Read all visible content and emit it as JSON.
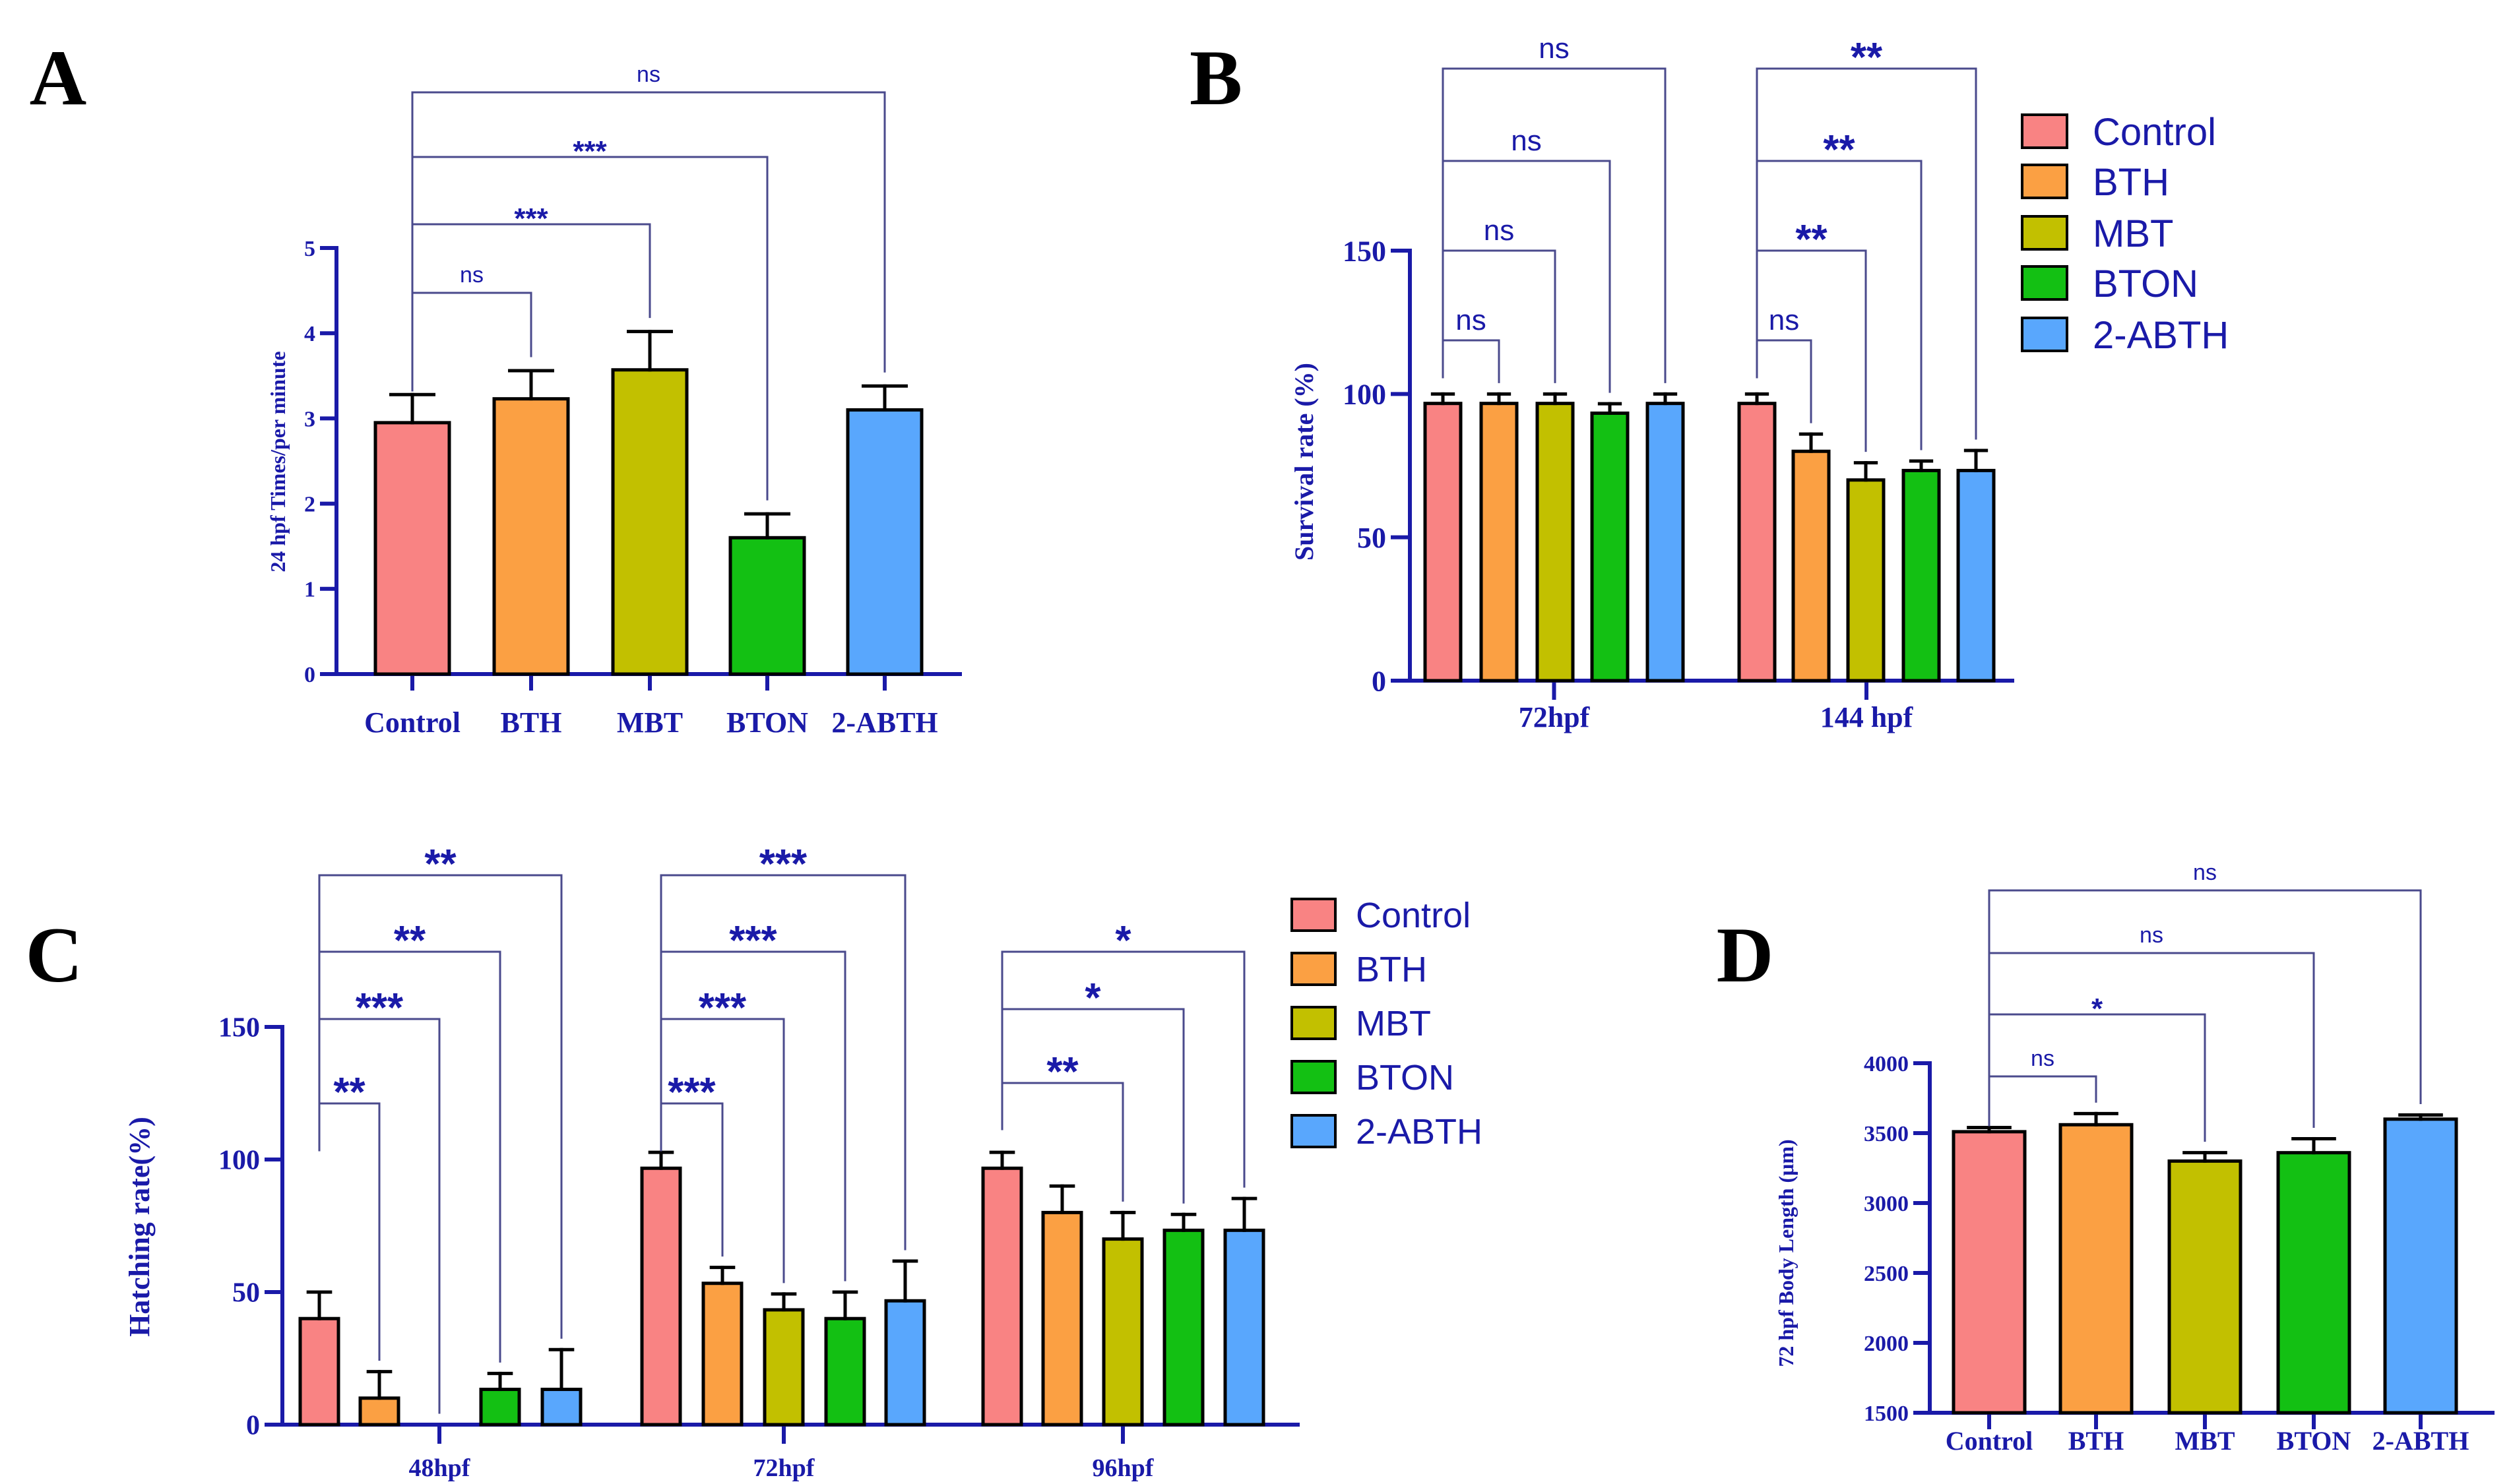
{
  "colors": {
    "axis": "#1a1aa8",
    "bracket": "#4a4a8c",
    "series": {
      "Control": "#f98383",
      "BTH": "#fba043",
      "MBT": "#c2c000",
      "BTON": "#13c013",
      "2-ABTH": "#59a7fd"
    }
  },
  "legend_labels": [
    "Control",
    "BTH",
    "MBT",
    "BTON",
    "2-ABTH"
  ],
  "chart_data": [
    {
      "panel": "A",
      "type": "bar",
      "ylabel": "24 hpf Times/per minute",
      "ylim": [
        0,
        5
      ],
      "yticks": [
        0,
        1,
        2,
        3,
        4,
        5
      ],
      "categories": [
        "Control",
        "BTH",
        "MBT",
        "BTON",
        "2-ABTH"
      ],
      "values": [
        2.95,
        3.23,
        3.57,
        1.6,
        3.1
      ],
      "errors": [
        0.33,
        0.33,
        0.45,
        0.28,
        0.28
      ],
      "significance": [
        {
          "from": "Control",
          "to": "BTH",
          "label": "ns"
        },
        {
          "from": "Control",
          "to": "MBT",
          "label": "***"
        },
        {
          "from": "Control",
          "to": "BTON",
          "label": "***"
        },
        {
          "from": "Control",
          "to": "2-ABTH",
          "label": "ns"
        }
      ]
    },
    {
      "panel": "B",
      "type": "bar",
      "ylabel": "Survival rate (%)",
      "ylim": [
        0,
        150
      ],
      "yticks": [
        0,
        50,
        100,
        150
      ],
      "groups": [
        "72hpf",
        "144 hpf"
      ],
      "series": [
        {
          "name": "Control",
          "values": [
            96.7,
            96.7
          ],
          "errors": [
            3.3,
            3.3
          ]
        },
        {
          "name": "BTH",
          "values": [
            96.7,
            80
          ],
          "errors": [
            3.3,
            6
          ]
        },
        {
          "name": "MBT",
          "values": [
            96.7,
            70
          ],
          "errors": [
            3.3,
            6
          ]
        },
        {
          "name": "BTON",
          "values": [
            93.3,
            73.3
          ],
          "errors": [
            3.3,
            3.3
          ]
        },
        {
          "name": "2-ABTH",
          "values": [
            96.7,
            73.3
          ],
          "errors": [
            3.3,
            7
          ]
        }
      ],
      "significance": [
        {
          "group": "72hpf",
          "to": "BTH",
          "label": "ns"
        },
        {
          "group": "72hpf",
          "to": "MBT",
          "label": "ns"
        },
        {
          "group": "72hpf",
          "to": "BTON",
          "label": "ns"
        },
        {
          "group": "72hpf",
          "to": "2-ABTH",
          "label": "ns"
        },
        {
          "group": "144 hpf",
          "to": "BTH",
          "label": "ns"
        },
        {
          "group": "144 hpf",
          "to": "MBT",
          "label": "**"
        },
        {
          "group": "144 hpf",
          "to": "BTON",
          "label": "**"
        },
        {
          "group": "144 hpf",
          "to": "2-ABTH",
          "label": "**"
        }
      ]
    },
    {
      "panel": "C",
      "type": "bar",
      "ylabel": "Hatching rate(%)",
      "ylim": [
        0,
        150
      ],
      "yticks": [
        0,
        50,
        100,
        150
      ],
      "groups": [
        "48hpf",
        "72hpf",
        "96hpf"
      ],
      "series": [
        {
          "name": "Control",
          "values": [
            40,
            96.7,
            96.7
          ],
          "errors": [
            10,
            6,
            6
          ]
        },
        {
          "name": "BTH",
          "values": [
            10,
            53.3,
            80
          ],
          "errors": [
            10,
            6,
            10
          ]
        },
        {
          "name": "MBT",
          "values": [
            0,
            43.3,
            70
          ],
          "errors": [
            0,
            6,
            10
          ]
        },
        {
          "name": "BTON",
          "values": [
            13.3,
            40,
            73.3
          ],
          "errors": [
            6,
            10,
            6
          ]
        },
        {
          "name": "2-ABTH",
          "values": [
            13.3,
            46.7,
            73.3
          ],
          "errors": [
            15,
            15,
            12
          ]
        }
      ],
      "significance": [
        {
          "group": "48hpf",
          "to": "BTH",
          "label": "**"
        },
        {
          "group": "48hpf",
          "to": "MBT",
          "label": "***"
        },
        {
          "group": "48hpf",
          "to": "BTON",
          "label": "**"
        },
        {
          "group": "48hpf",
          "to": "2-ABTH",
          "label": "**"
        },
        {
          "group": "72hpf",
          "to": "BTH",
          "label": "***"
        },
        {
          "group": "72hpf",
          "to": "MBT",
          "label": "***"
        },
        {
          "group": "72hpf",
          "to": "BTON",
          "label": "***"
        },
        {
          "group": "72hpf",
          "to": "2-ABTH",
          "label": "***"
        },
        {
          "group": "96hpf",
          "to": "MBT",
          "label": "**"
        },
        {
          "group": "96hpf",
          "to": "BTON",
          "label": "*"
        },
        {
          "group": "96hpf",
          "to": "2-ABTH",
          "label": "*"
        }
      ]
    },
    {
      "panel": "D",
      "type": "bar",
      "ylabel": "72 hpf Body Length (μm)",
      "ylim": [
        1500,
        4000
      ],
      "yticks": [
        1500,
        2000,
        2500,
        3000,
        3500,
        4000
      ],
      "categories": [
        "Control",
        "BTH",
        "MBT",
        "BTON",
        "2-ABTH"
      ],
      "values": [
        3510,
        3560,
        3300,
        3360,
        3600
      ],
      "errors": [
        30,
        80,
        60,
        100,
        30
      ],
      "significance": [
        {
          "from": "Control",
          "to": "BTH",
          "label": "ns"
        },
        {
          "from": "Control",
          "to": "MBT",
          "label": "*"
        },
        {
          "from": "Control",
          "to": "BTON",
          "label": "ns"
        },
        {
          "from": "Control",
          "to": "2-ABTH",
          "label": "ns"
        }
      ]
    }
  ]
}
